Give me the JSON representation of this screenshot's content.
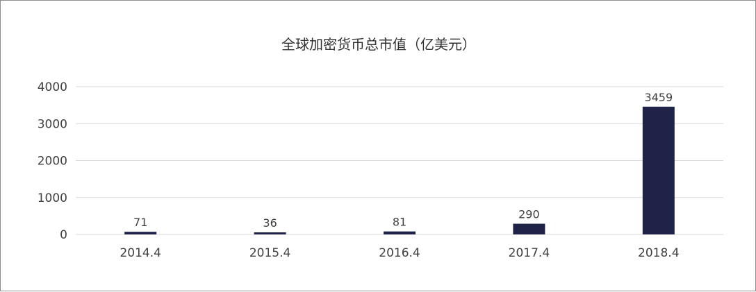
{
  "chart_data": {
    "type": "bar",
    "title": "全球加密货币总市值（亿美元）",
    "categories": [
      "2014.4",
      "2015.4",
      "2016.4",
      "2017.4",
      "2018.4"
    ],
    "values": [
      71,
      36,
      81,
      290,
      3459
    ],
    "data_labels": [
      "71",
      "36",
      "81",
      "290",
      "3459"
    ],
    "yticks": [
      "0",
      "1000",
      "2000",
      "3000",
      "4000"
    ],
    "ylim": [
      0,
      4000
    ],
    "xlabel": "",
    "ylabel": "",
    "grid": true,
    "legend": "none",
    "bar_color": "#1f2347"
  }
}
